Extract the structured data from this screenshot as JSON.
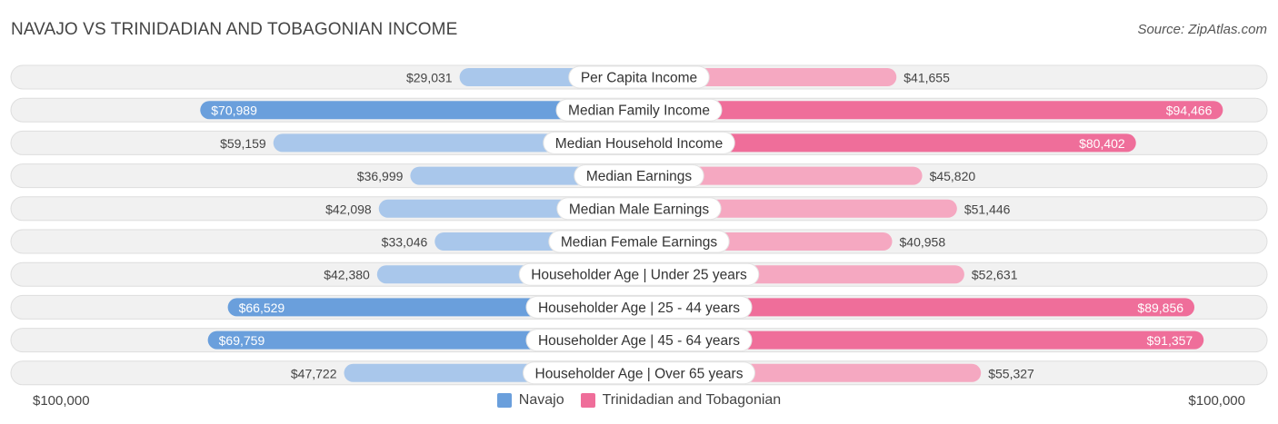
{
  "header": {
    "title": "NAVAJO VS TRINIDADIAN AND TOBAGONIAN INCOME",
    "source": "Source: ZipAtlas.com"
  },
  "colors": {
    "navajo_light": "#a9c7eb",
    "navajo_dark": "#6a9fdc",
    "trini_light": "#f5a8c1",
    "trini_dark": "#ef6e9a",
    "row_bg": "#f1f1f1"
  },
  "chart_data": {
    "type": "bar",
    "title": "NAVAJO VS TRINIDADIAN AND TOBAGONIAN INCOME",
    "xlim": [
      -100000,
      100000
    ],
    "axis": {
      "left_label": "$100,000",
      "right_label": "$100,000"
    },
    "categories": [
      "Per Capita Income",
      "Median Family Income",
      "Median Household Income",
      "Median Earnings",
      "Median Male Earnings",
      "Median Female Earnings",
      "Householder Age | Under 25 years",
      "Householder Age | 25 - 44 years",
      "Householder Age | 45 - 64 years",
      "Householder Age | Over 65 years"
    ],
    "series": [
      {
        "name": "Navajo",
        "values": [
          29031,
          70989,
          59159,
          36999,
          42098,
          33046,
          42380,
          66529,
          69759,
          47722
        ],
        "labels": [
          "$29,031",
          "$70,989",
          "$59,159",
          "$36,999",
          "$42,098",
          "$33,046",
          "$42,380",
          "$66,529",
          "$69,759",
          "$47,722"
        ]
      },
      {
        "name": "Trinidadian and Tobagonian",
        "values": [
          41655,
          94466,
          80402,
          45820,
          51446,
          40958,
          52631,
          89856,
          91357,
          55327
        ],
        "labels": [
          "$41,655",
          "$94,466",
          "$80,402",
          "$45,820",
          "$51,446",
          "$40,958",
          "$52,631",
          "$89,856",
          "$91,357",
          "$55,327"
        ]
      }
    ],
    "legend_position": "bottom-center"
  }
}
